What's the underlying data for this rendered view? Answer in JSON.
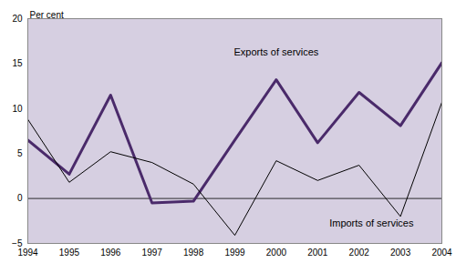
{
  "chart_data": {
    "type": "line",
    "y_label": "Per cent",
    "x": [
      1994,
      1995,
      1996,
      1997,
      1998,
      1999,
      2000,
      2001,
      2002,
      2003,
      2004
    ],
    "xlim": [
      1994,
      2004
    ],
    "xticks": [
      1994,
      1995,
      1996,
      1997,
      1998,
      1999,
      2000,
      2001,
      2002,
      2003,
      2004
    ],
    "ylim": [
      -5,
      20
    ],
    "yticks": [
      -5,
      0,
      5,
      10,
      15,
      20
    ],
    "grid": false,
    "series": [
      {
        "name": "Exports of services",
        "color": "#4a2a6a",
        "line_style": "thick",
        "values": [
          6.5,
          2.7,
          11.5,
          -0.5,
          -0.3,
          6.5,
          13.2,
          6.2,
          11.8,
          8.1,
          15.1
        ],
        "label_x": 2000,
        "label_y": 16.3
      },
      {
        "name": "Imports of services",
        "color": "#000000",
        "line_style": "thin",
        "values": [
          8.8,
          1.8,
          5.2,
          4.0,
          1.6,
          -4.1,
          4.2,
          2.0,
          3.7,
          -2.0,
          10.7
        ],
        "label_x": 2002.3,
        "label_y": -2.8
      }
    ]
  }
}
